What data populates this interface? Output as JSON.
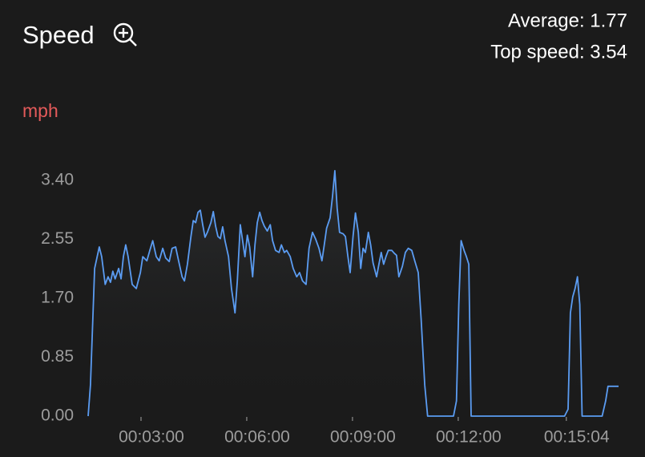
{
  "header": {
    "title": "Speed",
    "average": "Average: 1.77",
    "top_speed": "Top speed: 3.54"
  },
  "chart_data": {
    "type": "line",
    "y_label": "mph",
    "x": [
      90,
      94,
      101,
      109,
      113,
      119,
      124,
      128,
      132,
      136,
      142,
      146,
      150,
      154,
      158,
      165,
      172,
      179,
      183,
      190,
      195,
      200,
      206,
      211,
      217,
      222,
      228,
      233,
      239,
      244,
      250,
      254,
      259,
      265,
      269,
      273,
      277,
      281,
      285,
      289,
      293,
      299,
      303,
      307,
      311,
      315,
      319,
      323,
      329,
      334,
      340,
      344,
      349,
      353,
      357,
      361,
      365,
      370,
      374,
      378,
      382,
      386,
      390,
      395,
      400,
      404,
      409,
      415,
      419,
      424,
      428,
      434,
      439,
      445,
      450,
      455,
      461,
      466,
      472,
      477,
      483,
      488,
      492,
      496,
      502,
      506,
      510,
      514,
      518,
      524,
      528,
      532,
      536,
      541,
      545,
      550,
      554,
      558,
      562,
      567,
      571,
      575,
      581,
      585,
      589,
      593,
      597,
      601,
      607,
      611,
      615,
      619,
      625,
      630,
      635,
      641,
      646,
      652,
      657,
      663,
      668,
      712,
      717,
      721,
      725,
      730,
      734,
      738,
      742,
      901,
      907,
      911,
      915,
      919,
      923,
      927,
      931,
      965,
      971,
      975,
      993
    ],
    "series": [
      {
        "color": "#5b9cf2",
        "values": [
          0,
          0.45,
          2.13,
          2.44,
          2.3,
          1.9,
          2.01,
          1.93,
          2.09,
          1.98,
          2.13,
          1.98,
          2.3,
          2.47,
          2.3,
          1.9,
          1.84,
          2.07,
          2.3,
          2.24,
          2.39,
          2.53,
          2.3,
          2.24,
          2.42,
          2.28,
          2.23,
          2.42,
          2.44,
          2.24,
          2.01,
          1.95,
          2.19,
          2.59,
          2.82,
          2.79,
          2.94,
          2.97,
          2.76,
          2.58,
          2.65,
          2.79,
          2.95,
          2.74,
          2.59,
          2.56,
          2.73,
          2.53,
          2.3,
          1.84,
          1.49,
          1.95,
          2.76,
          2.53,
          2.3,
          2.61,
          2.44,
          2.01,
          2.47,
          2.79,
          2.94,
          2.82,
          2.74,
          2.67,
          2.76,
          2.53,
          2.39,
          2.36,
          2.47,
          2.36,
          2.39,
          2.3,
          2.13,
          2.01,
          2.07,
          1.95,
          1.9,
          2.42,
          2.65,
          2.56,
          2.42,
          2.24,
          2.47,
          2.71,
          2.86,
          3.17,
          3.54,
          3.0,
          2.65,
          2.63,
          2.59,
          2.32,
          2.07,
          2.59,
          2.93,
          2.65,
          2.13,
          2.42,
          2.36,
          2.65,
          2.47,
          2.21,
          2.01,
          2.19,
          2.36,
          2.19,
          2.3,
          2.39,
          2.39,
          2.35,
          2.32,
          2.01,
          2.16,
          2.36,
          2.42,
          2.39,
          2.24,
          2.07,
          1.38,
          0.45,
          0,
          0,
          0.22,
          1.61,
          2.53,
          2.39,
          2.3,
          2.19,
          0,
          0,
          0.1,
          1.49,
          1.72,
          1.84,
          2.01,
          1.61,
          0,
          0,
          0.22,
          0.43,
          0.43
        ]
      }
    ],
    "xlim": [
      90,
      993
    ],
    "ylim": [
      0,
      3.6
    ],
    "xticks": [
      {
        "value": 180,
        "label": "00:03:00"
      },
      {
        "value": 360,
        "label": "00:06:00"
      },
      {
        "value": 540,
        "label": "00:09:00"
      },
      {
        "value": 720,
        "label": "00:12:00"
      },
      {
        "value": 904,
        "label": "00:15:04"
      }
    ],
    "yticks": [
      {
        "value": 0,
        "label": "0.00"
      },
      {
        "value": 0.85,
        "label": "0.85"
      },
      {
        "value": 1.7,
        "label": "1.70"
      },
      {
        "value": 2.55,
        "label": "2.55"
      },
      {
        "value": 3.4,
        "label": "3.40"
      }
    ]
  }
}
